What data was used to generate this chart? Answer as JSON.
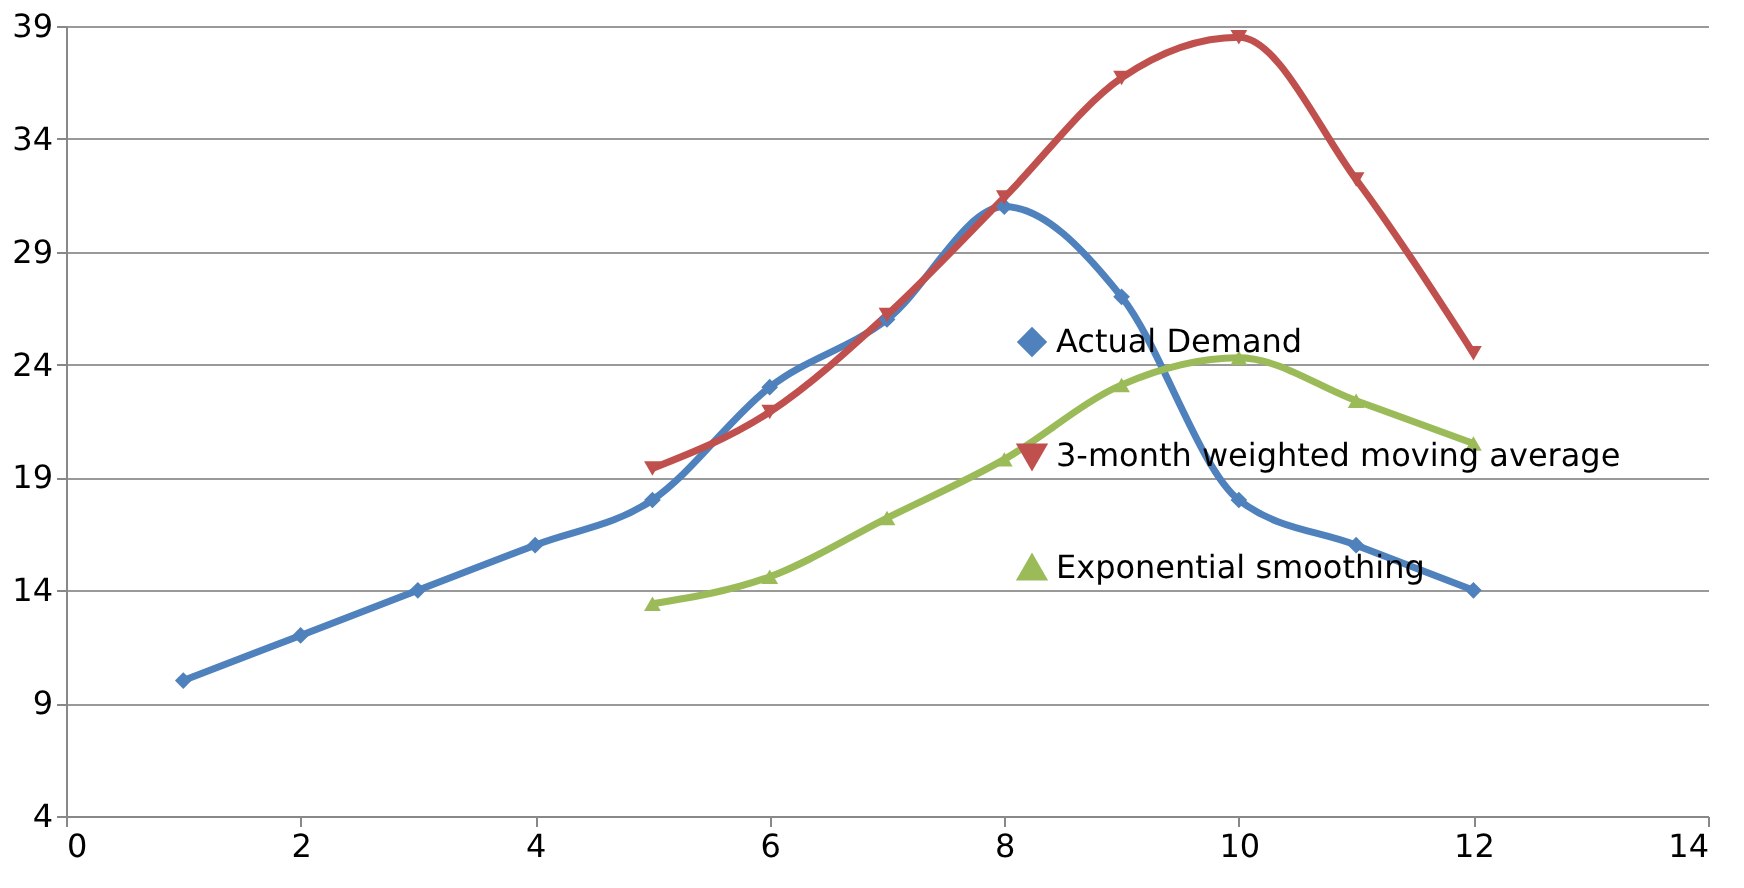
{
  "chart_data": {
    "type": "line",
    "xlim": [
      0,
      14
    ],
    "xticks": [
      0,
      2,
      4,
      6,
      8,
      10,
      12,
      14
    ],
    "ylim": [
      4,
      39
    ],
    "yticks": [
      4,
      9,
      14,
      19,
      24,
      29,
      34,
      39
    ],
    "grid": "y",
    "legend": "right",
    "series": [
      {
        "name": "Actual Demand",
        "color": "#4f81bd",
        "marker": "diamond",
        "x": [
          1,
          2,
          3,
          4,
          5,
          6,
          7,
          8,
          9,
          10,
          11,
          12
        ],
        "values": [
          10,
          12,
          14,
          16,
          18,
          23,
          26,
          31,
          27,
          18,
          16,
          14
        ]
      },
      {
        "name": "3-month weighted moving average",
        "color": "#c0504d",
        "marker": "triangle-down",
        "x": [
          5,
          6,
          7,
          8,
          9,
          10,
          11,
          12
        ],
        "values": [
          19.4,
          21.9,
          26.2,
          31.4,
          36.7,
          38.5,
          32.2,
          24.5
        ]
      },
      {
        "name": "Exponential smoothing",
        "color": "#9bbb59",
        "marker": "triangle",
        "x": [
          5,
          6,
          7,
          8,
          9,
          10,
          11,
          12
        ],
        "values": [
          13.4,
          14.6,
          17.2,
          19.8,
          23.1,
          24.3,
          22.4,
          20.5
        ]
      }
    ]
  }
}
